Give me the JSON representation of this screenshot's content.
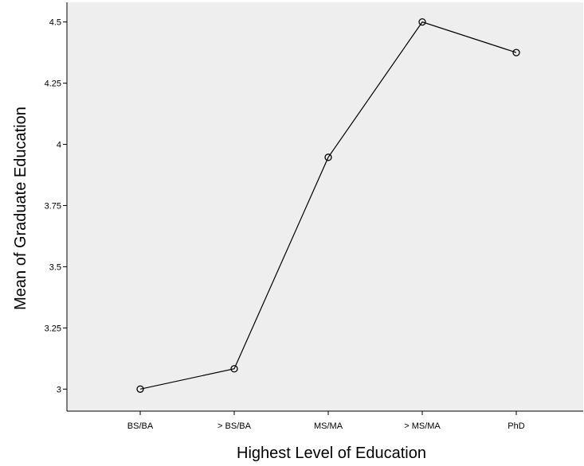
{
  "chart_data": {
    "type": "line",
    "categories": [
      "BS/BA",
      "> BS/BA",
      "MS/MA",
      "> MS/MA",
      "PhD"
    ],
    "series": [
      {
        "values": [
          3.0,
          3.083,
          3.947,
          4.5,
          4.375
        ]
      }
    ],
    "xlabel": "Highest Level of Education",
    "ylabel": "Mean of Graduate Education",
    "yticks": [
      3,
      3.25,
      3.5,
      3.75,
      4,
      4.25,
      4.5
    ],
    "ytick_labels": [
      "3",
      "3.25",
      "3.5",
      "3.75",
      "4",
      "4.25",
      "4.5"
    ],
    "ylim": [
      2.91,
      4.58
    ],
    "grid": false,
    "plot_background": "#eeeeee",
    "line_color": "#000000",
    "marker": "open-circle"
  }
}
